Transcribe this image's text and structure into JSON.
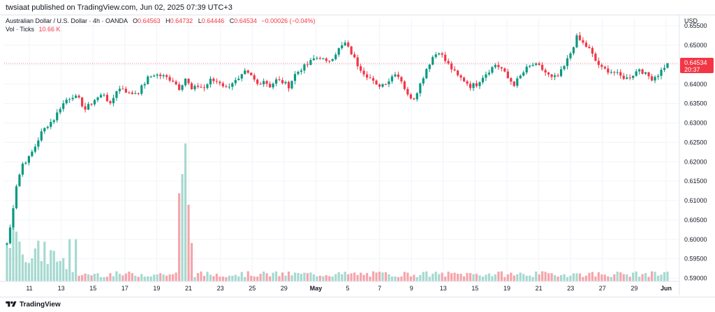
{
  "publisher": {
    "text": "twsiaat published on TradingView.com, Jun 02, 2025 07:39 UTC+3"
  },
  "legend": {
    "symbol": "Australian Dollar / U.S. Dollar · 4h · OANDA",
    "open_label": "O",
    "open": "0.64563",
    "high_label": "H",
    "high": "0.64732",
    "low_label": "L",
    "low": "0.64446",
    "close_label": "C",
    "close": "0.64534",
    "change": "−0.00026 (−0.04%)",
    "vol_label": "Vol · Ticks",
    "vol_value": "10.66 K"
  },
  "price_axis": {
    "currency": "USD",
    "last_price": "0.64534",
    "countdown": "20:37"
  },
  "footer": {
    "brand": "TradingView"
  },
  "colors": {
    "up": "#089981",
    "down": "#f23645",
    "vol_up": "#a6d9d0",
    "vol_down": "#f5a5ab",
    "grid": "#f0f3fa",
    "last_price_line": "#f23645"
  },
  "chart_data": {
    "type": "candlestick",
    "timeframe": "4h",
    "y_axis": {
      "ticks": [
        "0.65500",
        "0.65000",
        "0.64500",
        "0.64000",
        "0.63500",
        "0.63000",
        "0.62500",
        "0.62000",
        "0.61500",
        "0.61000",
        "0.60500",
        "0.60000",
        "0.59500",
        "0.59000"
      ],
      "range": [
        0.5892,
        0.657
      ]
    },
    "x_axis": {
      "labels": [
        "11",
        "13",
        "15",
        "17",
        "19",
        "21",
        "23",
        "25",
        "29",
        "May",
        "5",
        "7",
        "9",
        "13",
        "15",
        "19",
        "21",
        "23",
        "27",
        "29",
        "Jun"
      ]
    },
    "path_points": [
      [
        0,
        0.599
      ],
      [
        1,
        0.603
      ],
      [
        3,
        0.614
      ],
      [
        5,
        0.6195
      ],
      [
        7,
        0.621
      ],
      [
        9,
        0.624
      ],
      [
        11,
        0.6275
      ],
      [
        13,
        0.6295
      ],
      [
        15,
        0.631
      ],
      [
        17,
        0.634
      ],
      [
        19,
        0.636
      ],
      [
        21,
        0.637
      ],
      [
        23,
        0.636
      ],
      [
        25,
        0.6335
      ],
      [
        28,
        0.636
      ],
      [
        31,
        0.6375
      ],
      [
        33,
        0.6345
      ],
      [
        35,
        0.6385
      ],
      [
        37,
        0.639
      ],
      [
        39,
        0.6375
      ],
      [
        42,
        0.638
      ],
      [
        45,
        0.6415
      ],
      [
        47,
        0.6425
      ],
      [
        50,
        0.642
      ],
      [
        53,
        0.641
      ],
      [
        55,
        0.639
      ],
      [
        57,
        0.6415
      ],
      [
        59,
        0.6385
      ],
      [
        61,
        0.6395
      ],
      [
        63,
        0.639
      ],
      [
        65,
        0.641
      ],
      [
        68,
        0.6405
      ],
      [
        70,
        0.639
      ],
      [
        72,
        0.6405
      ],
      [
        74,
        0.641
      ],
      [
        76,
        0.643
      ],
      [
        78,
        0.642
      ],
      [
        80,
        0.64
      ],
      [
        82,
        0.641
      ],
      [
        84,
        0.6395
      ],
      [
        86,
        0.641
      ],
      [
        88,
        0.6405
      ],
      [
        90,
        0.6395
      ],
      [
        92,
        0.6425
      ],
      [
        94,
        0.644
      ],
      [
        96,
        0.645
      ],
      [
        98,
        0.6465
      ],
      [
        100,
        0.647
      ],
      [
        102,
        0.6455
      ],
      [
        104,
        0.647
      ],
      [
        106,
        0.649
      ],
      [
        108,
        0.6505
      ],
      [
        110,
        0.648
      ],
      [
        112,
        0.645
      ],
      [
        114,
        0.643
      ],
      [
        116,
        0.6415
      ],
      [
        118,
        0.6395
      ],
      [
        120,
        0.64
      ],
      [
        122,
        0.641
      ],
      [
        124,
        0.643
      ],
      [
        126,
        0.641
      ],
      [
        128,
        0.637
      ],
      [
        130,
        0.6365
      ],
      [
        132,
        0.64
      ],
      [
        134,
        0.644
      ],
      [
        136,
        0.647
      ],
      [
        138,
        0.6485
      ],
      [
        140,
        0.646
      ],
      [
        142,
        0.644
      ],
      [
        144,
        0.642
      ],
      [
        146,
        0.641
      ],
      [
        148,
        0.6395
      ],
      [
        150,
        0.64
      ],
      [
        152,
        0.642
      ],
      [
        154,
        0.6435
      ],
      [
        156,
        0.645
      ],
      [
        158,
        0.644
      ],
      [
        160,
        0.6415
      ],
      [
        162,
        0.64
      ],
      [
        164,
        0.642
      ],
      [
        166,
        0.644
      ],
      [
        168,
        0.645
      ],
      [
        170,
        0.6445
      ],
      [
        172,
        0.643
      ],
      [
        174,
        0.6415
      ],
      [
        176,
        0.642
      ],
      [
        178,
        0.6445
      ],
      [
        180,
        0.648
      ],
      [
        182,
        0.652
      ],
      [
        184,
        0.6505
      ],
      [
        186,
        0.649
      ],
      [
        188,
        0.646
      ],
      [
        190,
        0.644
      ],
      [
        192,
        0.6435
      ],
      [
        194,
        0.643
      ],
      [
        196,
        0.642
      ],
      [
        198,
        0.6415
      ],
      [
        200,
        0.6425
      ],
      [
        202,
        0.644
      ],
      [
        204,
        0.6425
      ],
      [
        206,
        0.6415
      ],
      [
        208,
        0.6425
      ],
      [
        210,
        0.6445
      ],
      [
        211,
        0.64534
      ]
    ],
    "volume_range": [
      0,
      2000
    ],
    "volume_spikes": [
      [
        2,
        700
      ],
      [
        3,
        650
      ],
      [
        5,
        350
      ],
      [
        55,
        1150
      ],
      [
        56,
        1400
      ],
      [
        57,
        1800
      ],
      [
        58,
        1000
      ],
      [
        59,
        500
      ]
    ],
    "volume_base": 220,
    "last_price": 0.64534
  }
}
